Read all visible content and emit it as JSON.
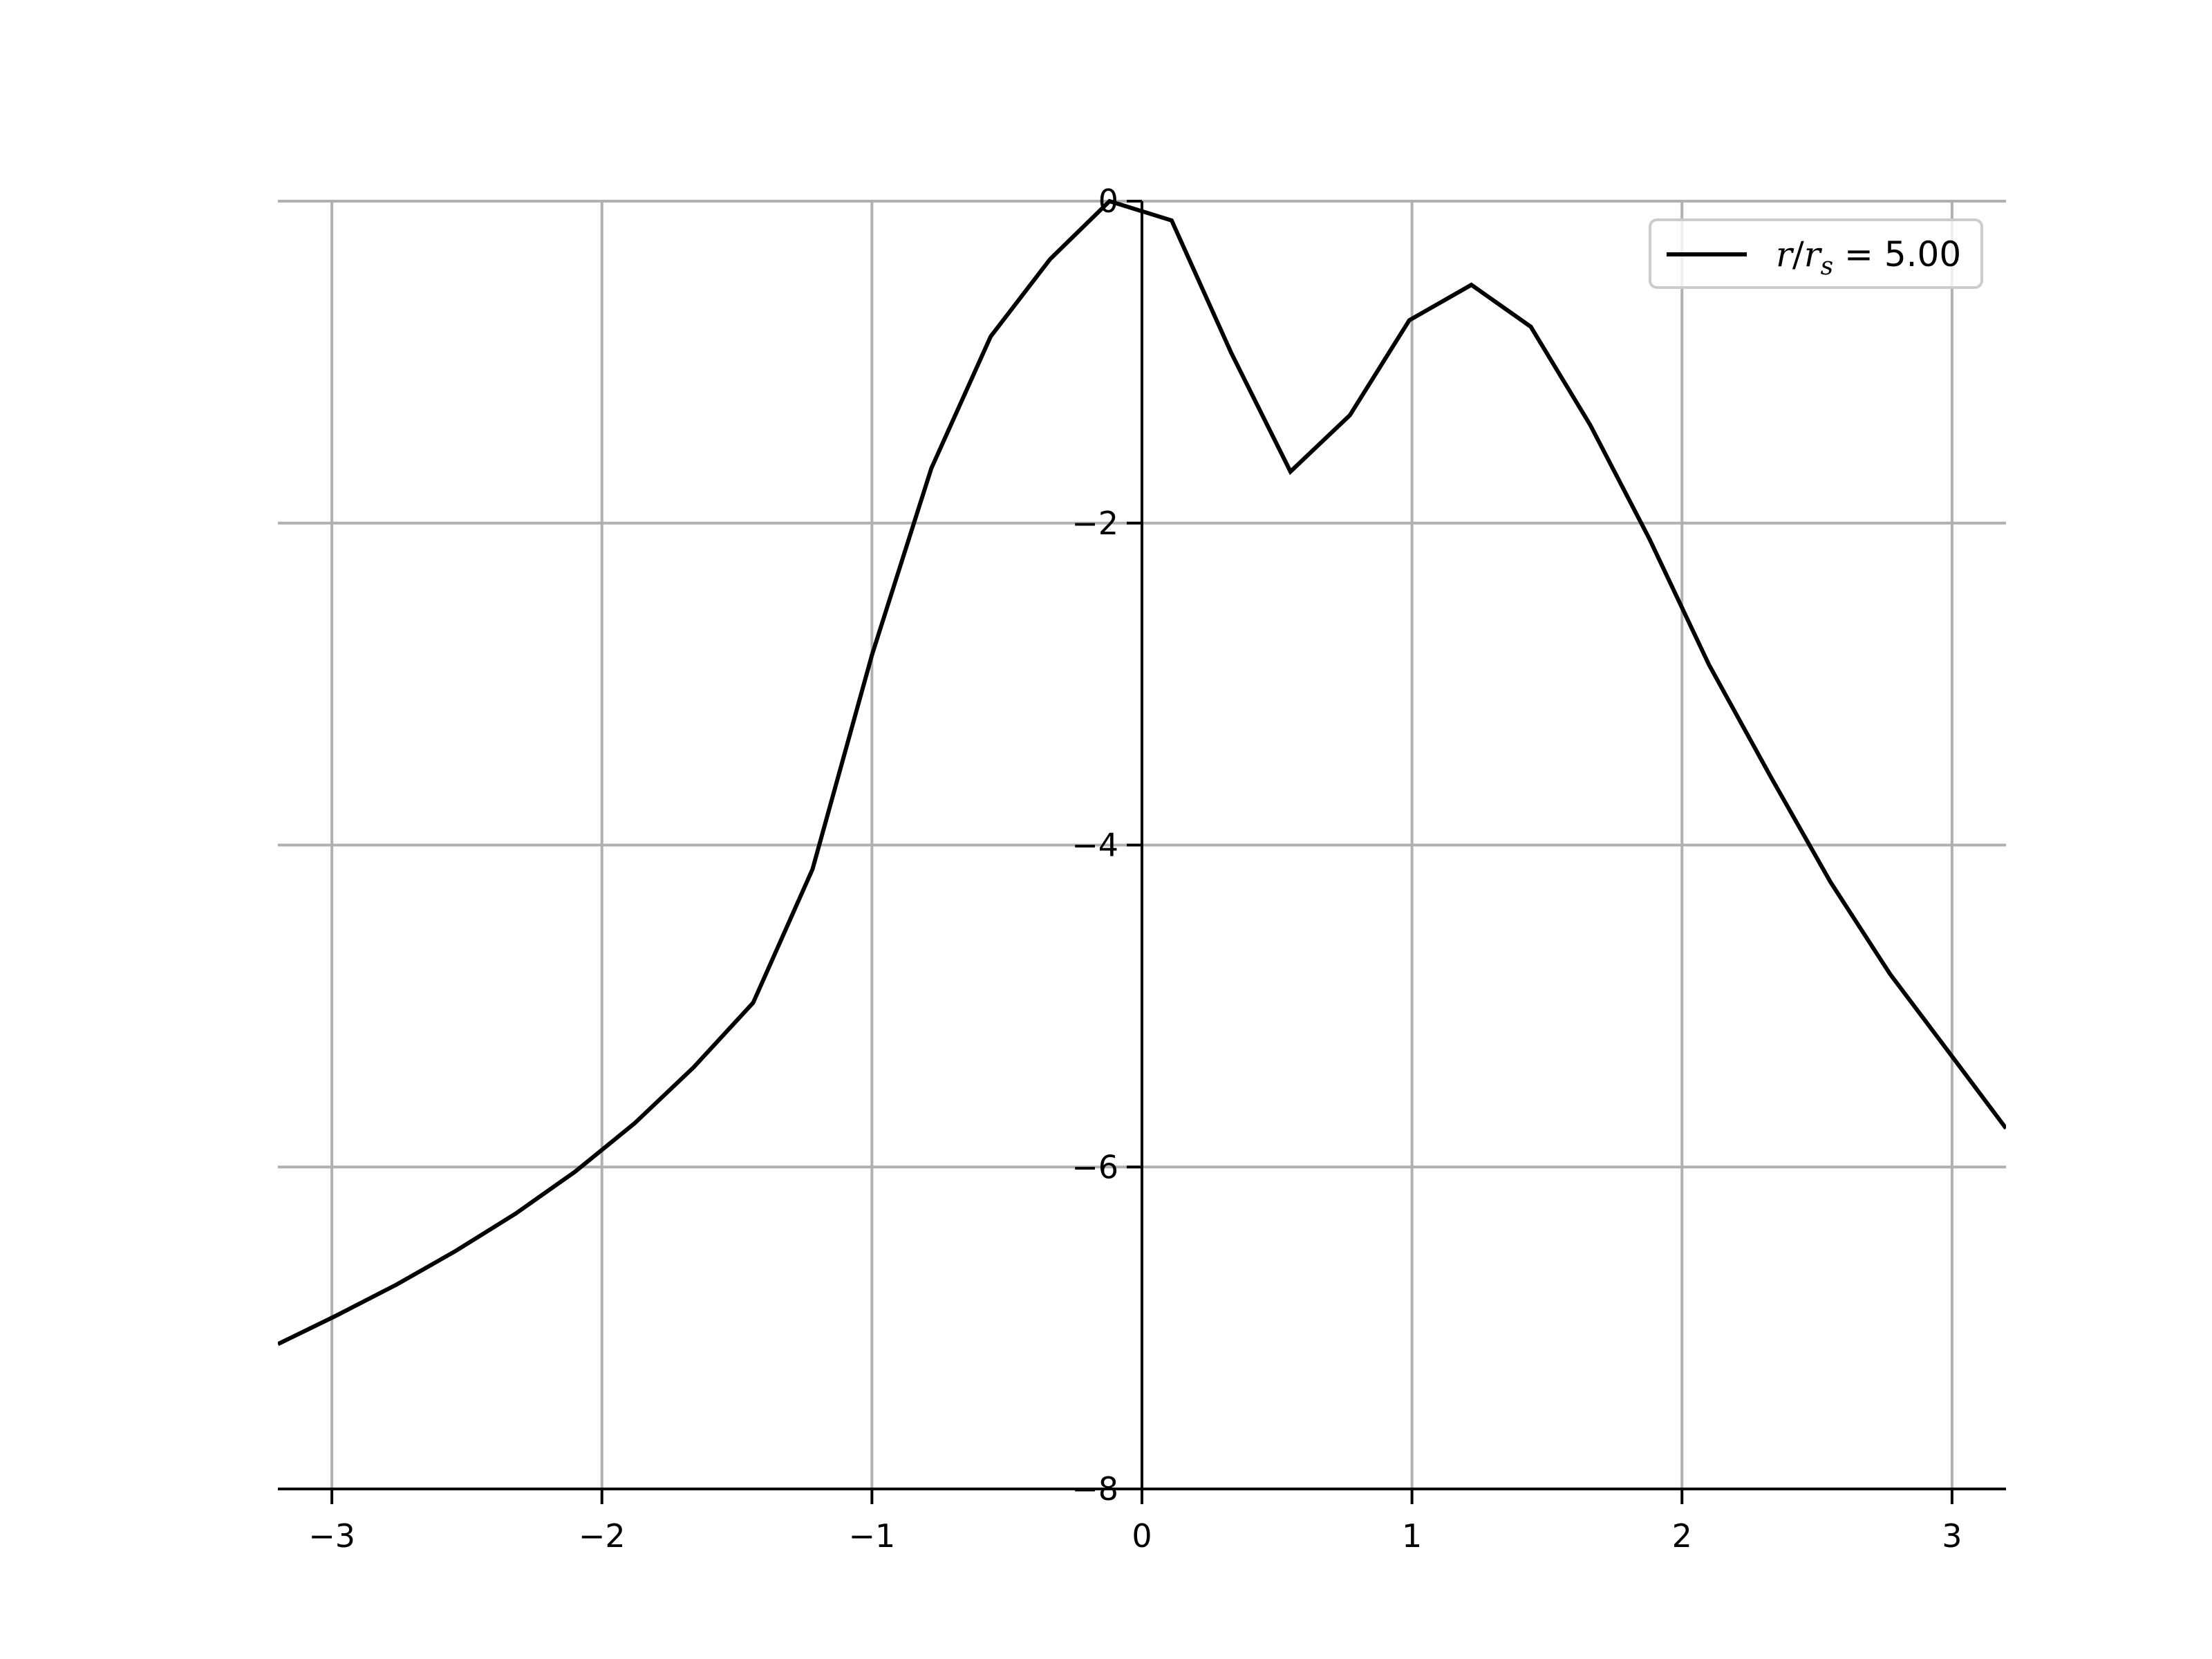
{
  "chart_data": {
    "type": "line",
    "title": "",
    "xlabel": "",
    "ylabel": "",
    "xlim": [
      -3.2,
      3.2
    ],
    "ylim": [
      -8,
      0
    ],
    "x_ticks": [
      -3,
      -2,
      -1,
      0,
      1,
      2,
      3
    ],
    "x_tick_labels": [
      "−3",
      "−2",
      "−1",
      "0",
      "1",
      "2",
      "3"
    ],
    "y_ticks": [
      0,
      -2,
      -4,
      -6,
      -8
    ],
    "y_tick_labels": [
      "0",
      "−2",
      "−4",
      "−6",
      "−8"
    ],
    "grid": true,
    "legend_position": "top-right",
    "colors": {
      "line": "#000000",
      "grid": "#b0b0b0"
    },
    "series": [
      {
        "name": "r/r_s = 5.00",
        "legend_label": {
          "var": "r",
          "slash": "/",
          "sub_base": "r",
          "sub": "s",
          "eq": " = 5.00"
        },
        "x": [
          -3.2,
          -2.98,
          -2.76,
          -2.54,
          -2.32,
          -2.1,
          -1.88,
          -1.66,
          -1.44,
          -1.22,
          -1.0,
          -0.78,
          -0.56,
          -0.34,
          -0.12,
          0.11,
          0.33,
          0.55,
          0.77,
          0.99,
          1.22,
          1.44,
          1.66,
          1.88,
          2.1,
          2.33,
          2.55,
          2.77,
          2.99,
          3.2
        ],
        "y": [
          -7.1,
          -6.92,
          -6.73,
          -6.52,
          -6.29,
          -6.03,
          -5.73,
          -5.38,
          -4.98,
          -4.15,
          -2.82,
          -1.66,
          -0.84,
          -0.36,
          0.0,
          -0.12,
          -0.94,
          -1.68,
          -1.33,
          -0.74,
          -0.52,
          -0.78,
          -1.39,
          -2.1,
          -2.88,
          -3.58,
          -4.23,
          -4.8,
          -5.29,
          -5.76
        ]
      }
    ]
  }
}
